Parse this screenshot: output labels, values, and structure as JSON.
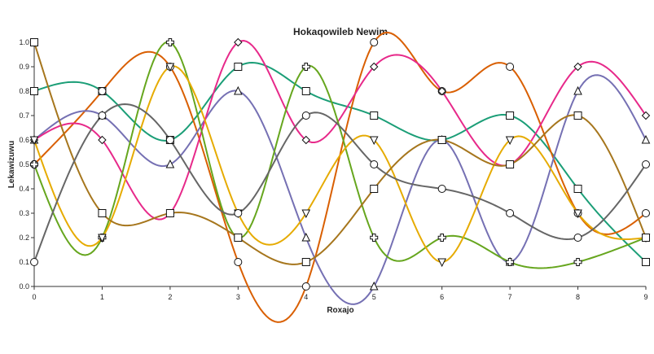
{
  "chart_data": {
    "type": "line",
    "title": "Hokaqowileb Newim",
    "xlabel": "Roxajo",
    "ylabel": "Lekawizuwu",
    "x": [
      0,
      1,
      2,
      3,
      4,
      5,
      6,
      7,
      8,
      9
    ],
    "xlim": [
      0,
      9
    ],
    "ylim": [
      0,
      1.0
    ],
    "x_ticks": [
      "0",
      "1",
      "2",
      "3",
      "4",
      "5",
      "6",
      "7",
      "8",
      "9"
    ],
    "y_ticks": [
      "0.0",
      "0.1",
      "0.2",
      "0.3",
      "0.4",
      "0.5",
      "0.6",
      "0.7",
      "0.8",
      "0.9",
      "1.0"
    ],
    "grid": false,
    "legend": "none",
    "series": [
      {
        "color": "#1b9e77",
        "marker": "square",
        "values": [
          0.8,
          0.8,
          0.6,
          0.9,
          0.8,
          0.7,
          0.6,
          0.7,
          0.4,
          0.1
        ]
      },
      {
        "color": "#d95f02",
        "marker": "circle",
        "values": [
          0.5,
          0.8,
          0.9,
          0.1,
          0.0,
          1.0,
          0.8,
          0.9,
          0.3,
          0.3
        ]
      },
      {
        "color": "#7570b3",
        "marker": "triangle-up",
        "values": [
          0.6,
          0.7,
          0.5,
          0.8,
          0.2,
          0.0,
          0.6,
          0.1,
          0.8,
          0.6
        ]
      },
      {
        "color": "#e7298a",
        "marker": "diamond",
        "values": [
          0.6,
          0.6,
          0.3,
          1.0,
          0.6,
          0.9,
          0.8,
          0.5,
          0.9,
          0.7
        ]
      },
      {
        "color": "#66a61e",
        "marker": "plus",
        "values": [
          0.5,
          0.2,
          1.0,
          0.2,
          0.9,
          0.2,
          0.2,
          0.1,
          0.1,
          0.2
        ]
      },
      {
        "color": "#e6ab02",
        "marker": "triangle-down",
        "values": [
          0.6,
          0.2,
          0.9,
          0.3,
          0.3,
          0.6,
          0.1,
          0.6,
          0.3,
          0.2
        ]
      },
      {
        "color": "#a6761d",
        "marker": "square",
        "values": [
          1.0,
          0.3,
          0.3,
          0.2,
          0.1,
          0.4,
          0.6,
          0.5,
          0.7,
          0.2
        ]
      },
      {
        "color": "#666666",
        "marker": "circle",
        "values": [
          0.1,
          0.7,
          0.6,
          0.3,
          0.7,
          0.5,
          0.4,
          0.3,
          0.2,
          0.5
        ]
      }
    ]
  }
}
